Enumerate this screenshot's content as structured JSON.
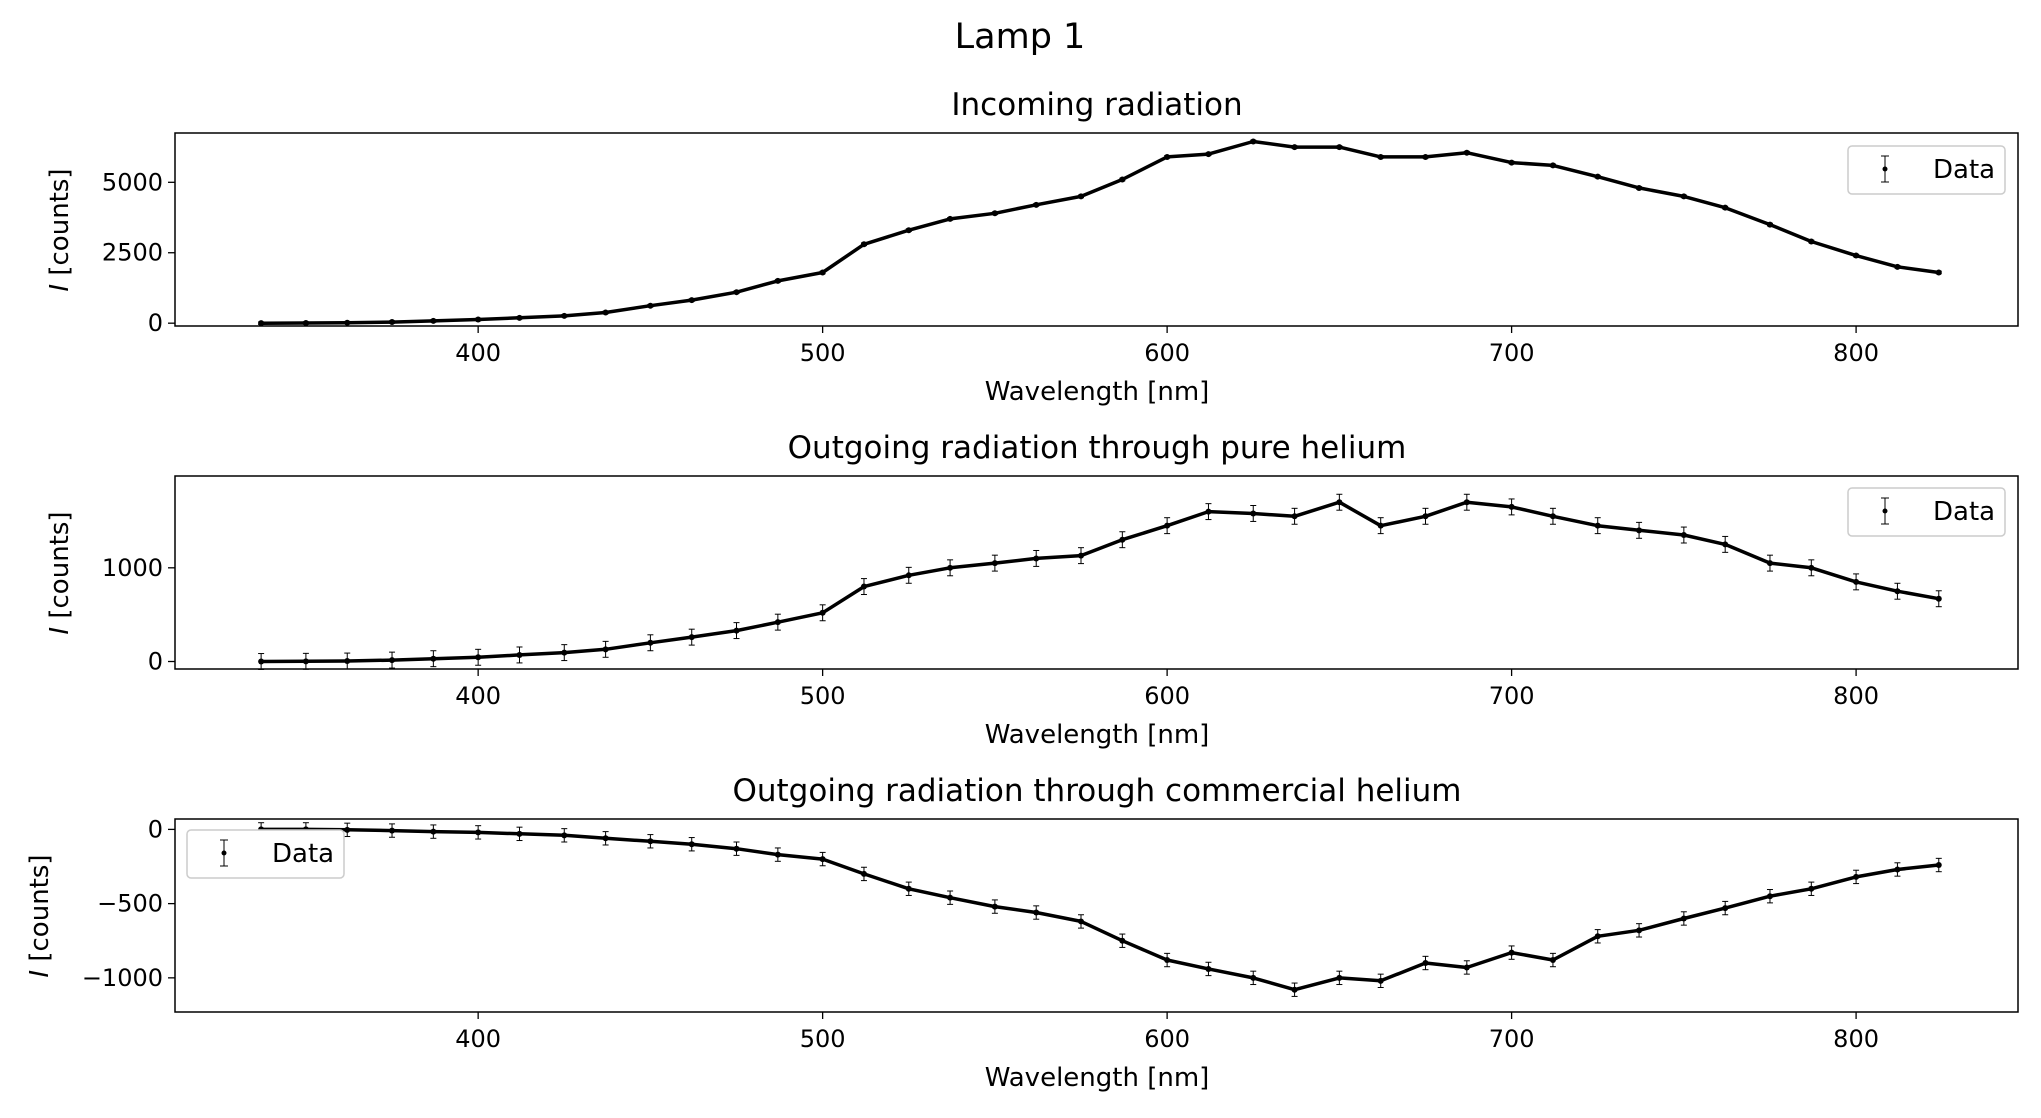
{
  "figure": {
    "title": "Lamp 1"
  },
  "chart_data": [
    {
      "type": "scatter",
      "title": "Incoming radiation",
      "xlabel": "Wavelength [nm]",
      "ylabel_var": "I",
      "ylabel_unit": " [counts]",
      "xlim": [
        312,
        847
      ],
      "ylim": [
        -100,
        6750
      ],
      "xticks": [
        400,
        500,
        600,
        700,
        800
      ],
      "yticks": [
        0,
        2500,
        5000
      ],
      "grid": false,
      "legend": {
        "position": "upper right",
        "label": "Data"
      },
      "errorbars": true,
      "err": 45,
      "x": [
        337,
        350,
        362,
        375,
        387,
        400,
        412,
        425,
        437,
        450,
        462,
        475,
        487,
        500,
        512,
        525,
        537,
        550,
        562,
        575,
        587,
        600,
        612,
        625,
        637,
        650,
        662,
        675,
        687,
        700,
        712,
        725,
        737,
        750,
        762,
        775,
        787,
        800,
        812,
        824
      ],
      "y": [
        0,
        5,
        15,
        40,
        80,
        130,
        190,
        260,
        380,
        620,
        820,
        1100,
        1500,
        1800,
        2800,
        3300,
        3700,
        3900,
        4200,
        4500,
        5100,
        5900,
        6000,
        6450,
        6250,
        6250,
        5900,
        5900,
        6050,
        5700,
        5600,
        5200,
        4800,
        4500,
        4100,
        3500,
        2900,
        2400,
        2000,
        1800
      ]
    },
    {
      "type": "scatter",
      "title": "Outgoing radiation through pure helium",
      "xlabel": "Wavelength [nm]",
      "ylabel_var": "I",
      "ylabel_unit": " [counts]",
      "xlim": [
        312,
        847
      ],
      "ylim": [
        -80,
        1980
      ],
      "xticks": [
        400,
        500,
        600,
        700,
        800
      ],
      "yticks": [
        0,
        1000
      ],
      "grid": false,
      "legend": {
        "position": "upper right",
        "label": "Data"
      },
      "errorbars": true,
      "err": 85,
      "x": [
        337,
        350,
        362,
        375,
        387,
        400,
        412,
        425,
        437,
        450,
        462,
        475,
        487,
        500,
        512,
        525,
        537,
        550,
        562,
        575,
        587,
        600,
        612,
        625,
        637,
        650,
        662,
        675,
        687,
        700,
        712,
        725,
        737,
        750,
        762,
        775,
        787,
        800,
        812,
        824
      ],
      "y": [
        0,
        2,
        5,
        15,
        30,
        45,
        70,
        95,
        130,
        200,
        260,
        330,
        420,
        520,
        800,
        920,
        1000,
        1050,
        1100,
        1130,
        1300,
        1450,
        1600,
        1580,
        1550,
        1700,
        1450,
        1550,
        1700,
        1650,
        1550,
        1450,
        1400,
        1350,
        1250,
        1050,
        1000,
        850,
        750,
        670
      ]
    },
    {
      "type": "scatter",
      "title": "Outgoing radiation through commercial helium",
      "xlabel": "Wavelength [nm]",
      "ylabel_var": "I",
      "ylabel_unit": " [counts]",
      "xlim": [
        312,
        847
      ],
      "ylim": [
        -1230,
        70
      ],
      "xticks": [
        400,
        500,
        600,
        700,
        800
      ],
      "yticks": [
        0,
        -500,
        -1000
      ],
      "grid": false,
      "legend": {
        "position": "upper left",
        "label": "Data"
      },
      "errorbars": true,
      "err": 45,
      "x": [
        337,
        350,
        362,
        375,
        387,
        400,
        412,
        425,
        437,
        450,
        462,
        475,
        487,
        500,
        512,
        525,
        537,
        550,
        562,
        575,
        587,
        600,
        612,
        625,
        637,
        650,
        662,
        675,
        687,
        700,
        712,
        725,
        737,
        750,
        762,
        775,
        787,
        800,
        812,
        824
      ],
      "y": [
        0,
        0,
        -3,
        -8,
        -15,
        -20,
        -30,
        -40,
        -60,
        -80,
        -100,
        -130,
        -170,
        -200,
        -300,
        -400,
        -460,
        -520,
        -560,
        -620,
        -750,
        -880,
        -940,
        -1000,
        -1080,
        -1000,
        -1020,
        -900,
        -930,
        -830,
        -880,
        -720,
        -680,
        -600,
        -530,
        -450,
        -400,
        -320,
        -270,
        -240
      ]
    }
  ]
}
